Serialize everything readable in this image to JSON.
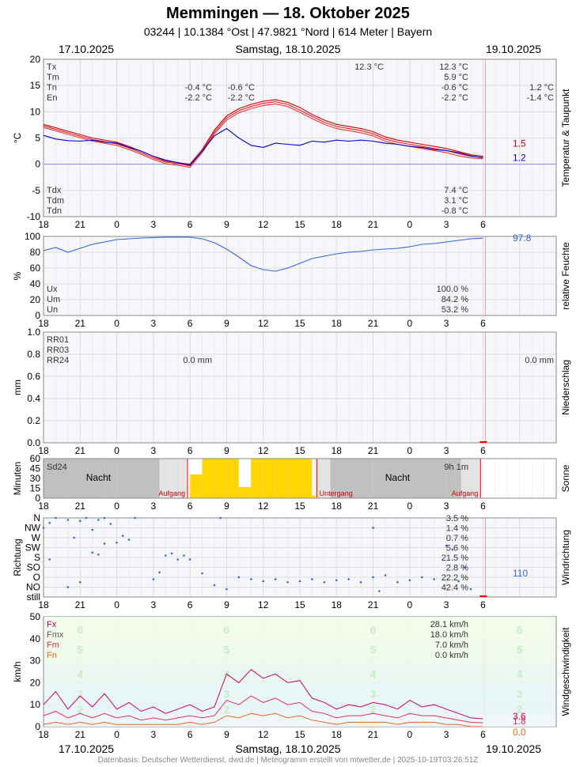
{
  "header": {
    "title": "Memmingen  —  18. Oktober 2025",
    "subtitle": "03244  |  10.1384 °Ost  |  47.9821 °Nord  |  614 Meter  |  Bayern"
  },
  "dates": {
    "left": "17.10.2025",
    "center": "Samstag, 18.10.2025",
    "right": "19.10.2025"
  },
  "footer": "Datenbasis: Deutscher Wetterdienst, dwd.de | Meteogramm erstellt von mtwetter.de | 2025-10-19T03:26:51Z",
  "x_ticks": [
    "18",
    "21",
    "0",
    "3",
    "6",
    "9",
    "12",
    "15",
    "18",
    "21",
    "0",
    "3",
    "6"
  ],
  "colors": {
    "tx": "#cc0000",
    "tm": "#dd2222",
    "tn": "#ee3333",
    "dew": "#0000cc",
    "humidity": "#3366dd",
    "sun": "#ffd700",
    "night": "#c0c0c0",
    "fx": "#cc0066",
    "fm": "#dd3355",
    "fn": "#ee6622",
    "dir": "#3366dd",
    "now": "#ff0000"
  },
  "chart_data": [
    {
      "type": "line",
      "name": "temperature",
      "side_label": "Temperatur & Taupunkt",
      "ylabel": "°C",
      "ylim": [
        -10,
        20
      ],
      "yticks": [
        "20",
        "15",
        "10",
        "5",
        "0",
        "-5",
        "-10"
      ],
      "x_range_hours": [
        -6,
        36
      ],
      "series": [
        {
          "name": "Tx",
          "x": [
            -6,
            -4,
            -2,
            0,
            1,
            2,
            3,
            4,
            5,
            6,
            7,
            8,
            9,
            10,
            11,
            12,
            13,
            14,
            15,
            16,
            17,
            18,
            19,
            20,
            21,
            22,
            23,
            24,
            25,
            26,
            27,
            28,
            29,
            30
          ],
          "values": [
            7.6,
            6.3,
            5.0,
            4.2,
            3.4,
            2.5,
            1.5,
            0.6,
            0.3,
            0.0,
            2.8,
            6.5,
            9.2,
            10.6,
            11.4,
            12.0,
            12.3,
            11.8,
            10.8,
            9.5,
            8.4,
            7.6,
            7.2,
            6.8,
            6.2,
            5.2,
            4.6,
            4.2,
            3.8,
            3.4,
            3.0,
            2.4,
            1.8,
            1.5
          ]
        },
        {
          "name": "Tm",
          "x": [
            -6,
            -4,
            -2,
            0,
            1,
            2,
            3,
            4,
            5,
            6,
            7,
            8,
            9,
            10,
            11,
            12,
            13,
            14,
            15,
            16,
            17,
            18,
            19,
            20,
            21,
            22,
            23,
            24,
            25,
            26,
            27,
            28,
            29,
            30
          ],
          "values": [
            7.3,
            6.0,
            4.7,
            3.9,
            3.1,
            2.2,
            1.2,
            0.4,
            0.1,
            -0.3,
            2.5,
            6.1,
            8.8,
            10.2,
            11.0,
            11.6,
            11.9,
            11.4,
            10.3,
            9.1,
            8.0,
            7.2,
            6.8,
            6.4,
            5.8,
            4.8,
            4.2,
            3.8,
            3.4,
            3.0,
            2.6,
            2.0,
            1.5,
            1.3
          ]
        },
        {
          "name": "Tn",
          "x": [
            -6,
            -4,
            -2,
            0,
            1,
            2,
            3,
            4,
            5,
            6,
            7,
            8,
            9,
            10,
            11,
            12,
            13,
            14,
            15,
            16,
            17,
            18,
            19,
            20,
            21,
            22,
            23,
            24,
            25,
            26,
            27,
            28,
            29,
            30
          ],
          "values": [
            7.0,
            5.7,
            4.4,
            3.6,
            2.8,
            1.9,
            0.9,
            0.1,
            -0.2,
            -0.6,
            2.2,
            5.8,
            8.4,
            9.8,
            10.6,
            11.2,
            11.5,
            11.0,
            9.9,
            8.7,
            7.6,
            6.8,
            6.4,
            6.0,
            5.4,
            4.4,
            3.8,
            3.4,
            3.0,
            2.6,
            2.2,
            1.6,
            1.2,
            1.0
          ]
        },
        {
          "name": "Td",
          "x": [
            -6,
            -5,
            -4,
            -3,
            -2,
            -1,
            0,
            1,
            2,
            3,
            4,
            5,
            6,
            7,
            8,
            9,
            10,
            11,
            12,
            13,
            14,
            15,
            16,
            17,
            18,
            19,
            20,
            21,
            22,
            23,
            24,
            25,
            26,
            27,
            28,
            29,
            30
          ],
          "values": [
            5.5,
            4.8,
            4.5,
            4.4,
            4.6,
            4.2,
            4.0,
            3.2,
            2.5,
            1.5,
            0.8,
            0.3,
            -0.2,
            2.5,
            5.4,
            6.8,
            5.0,
            3.6,
            3.2,
            4.0,
            3.8,
            3.6,
            4.4,
            4.2,
            4.6,
            4.4,
            4.6,
            4.4,
            4.0,
            3.8,
            3.4,
            3.2,
            2.8,
            2.6,
            2.2,
            1.6,
            1.2
          ]
        }
      ],
      "stats_left": [
        {
          "label": "Tx",
          "a": "",
          "b": ""
        },
        {
          "label": "Tm",
          "a": "",
          "b": ""
        },
        {
          "label": "Tn",
          "a": "-0.4 °C",
          "b": "-0.6 °C"
        },
        {
          "label": "En",
          "a": "-2.2 °C",
          "b": "-2.2 °C"
        }
      ],
      "stats_mid": [
        "12.3 °C",
        "",
        "",
        ""
      ],
      "stats_right": [
        "12.3 °C",
        "5.9 °C",
        "-0.6 °C",
        "-2.2 °C"
      ],
      "stats_far": [
        "",
        "",
        "1.2 °C",
        "-1.4 °C"
      ],
      "stats_dew_labels": [
        "Tdx",
        "Tdm",
        "Tdn"
      ],
      "stats_dew": [
        "7.4 °C",
        "3.1 °C",
        "-0.8 °C"
      ],
      "end_values": [
        "1.5",
        "1.2"
      ]
    },
    {
      "type": "line",
      "name": "humidity",
      "side_label": "relative Feuchte",
      "ylabel": "%",
      "ylim": [
        0,
        100
      ],
      "yticks": [
        "100",
        "80",
        "60",
        "40",
        "20",
        "0"
      ],
      "series": [
        {
          "name": "U",
          "x": [
            -6,
            -5,
            -4,
            -3,
            -2,
            -1,
            0,
            2,
            4,
            6,
            7,
            8,
            9,
            10,
            11,
            12,
            13,
            14,
            15,
            16,
            17,
            18,
            19,
            20,
            21,
            22,
            23,
            24,
            25,
            26,
            27,
            28,
            29,
            30
          ],
          "values": [
            82,
            86,
            80,
            85,
            90,
            93,
            96,
            98,
            99,
            99,
            97,
            92,
            84,
            74,
            63,
            58,
            56,
            60,
            66,
            72,
            75,
            78,
            80,
            81,
            83,
            84,
            85,
            87,
            90,
            91,
            93,
            95,
            97,
            97.8
          ]
        }
      ],
      "stats_labels": [
        "Ux",
        "Um",
        "Un"
      ],
      "stats": [
        "100.0 %",
        "84.2 %",
        "53.2 %"
      ],
      "end_value": "97.8"
    },
    {
      "type": "bar",
      "name": "precipitation",
      "side_label": "Niederschlag",
      "ylabel": "mm",
      "ylim": [
        0,
        1.0
      ],
      "yticks": [
        "1.0",
        "0.8",
        "0.6",
        "0.4",
        "0.2",
        "0.0"
      ],
      "stats_labels": [
        "RR01",
        "RR03",
        "RR24"
      ],
      "stats_mid": "0.0 mm",
      "stats_right": "0.0 mm"
    },
    {
      "type": "bar",
      "name": "sunshine",
      "side_label": "Sonne",
      "ylabel": "Minuten",
      "ylim": [
        0,
        60
      ],
      "yticks": [
        "60",
        "45",
        "30",
        "15",
        "0"
      ],
      "x": [
        6,
        7,
        8,
        9,
        10,
        11,
        12,
        13,
        14,
        15
      ],
      "values": [
        36,
        60,
        60,
        60,
        17,
        60,
        60,
        60,
        60,
        60
      ],
      "stats_label": "Sd24",
      "stats_value": "9h 1m",
      "night_label": "Nacht",
      "sunrise_label": "Aufgang",
      "sunset_label": "Untergang"
    },
    {
      "type": "scatter",
      "name": "wind_direction",
      "side_label": "Windrichtung",
      "ylabel": "Richtung",
      "categories": [
        "N",
        "NW",
        "W",
        "SW",
        "S",
        "SO",
        "O",
        "NO",
        "still"
      ],
      "stats": [
        "3.5 %",
        "1.4 %",
        "0.7 %",
        "5.6 %",
        "21.5 %",
        "2.8 %",
        "22.2 %",
        "42.4 %",
        ""
      ],
      "end_value": "110"
    },
    {
      "type": "line",
      "name": "wind_speed",
      "side_label": "Windgeschwindigkeit",
      "ylabel": "km/h",
      "ylim": [
        0,
        50
      ],
      "yticks": [
        "50",
        "40",
        "30",
        "20",
        "10",
        "0"
      ],
      "beaufort": [
        "6",
        "5",
        "4",
        "3",
        "2"
      ],
      "series": [
        {
          "name": "Fx",
          "x": [
            -6,
            -5,
            -4,
            -3,
            -2,
            -1,
            0,
            1,
            2,
            3,
            4,
            5,
            6,
            7,
            8,
            9,
            10,
            11,
            12,
            13,
            14,
            15,
            16,
            17,
            18,
            19,
            20,
            21,
            22,
            23,
            24,
            25,
            26,
            27,
            28,
            29,
            30
          ],
          "values": [
            10,
            16,
            8,
            14,
            9,
            15,
            8,
            11,
            7,
            9,
            6,
            8,
            10,
            7,
            9,
            24,
            20,
            26,
            22,
            24,
            20,
            21,
            13,
            11,
            8,
            10,
            9,
            11,
            10,
            8,
            12,
            9,
            10,
            8,
            6,
            4,
            3.6
          ]
        },
        {
          "name": "Fm",
          "x": [
            -6,
            -5,
            -4,
            -3,
            -2,
            -1,
            0,
            1,
            2,
            3,
            4,
            5,
            6,
            7,
            8,
            9,
            10,
            11,
            12,
            13,
            14,
            15,
            16,
            17,
            18,
            19,
            20,
            21,
            22,
            23,
            24,
            25,
            26,
            27,
            28,
            29,
            30
          ],
          "values": [
            5,
            7,
            4,
            6,
            4,
            6,
            4,
            5,
            3,
            4,
            3,
            4,
            5,
            4,
            5,
            12,
            10,
            14,
            11,
            13,
            10,
            11,
            7,
            6,
            4,
            5,
            5,
            6,
            5,
            4,
            6,
            5,
            5,
            4,
            3,
            2,
            1.8
          ]
        },
        {
          "name": "Fn",
          "x": [
            -6,
            -5,
            -4,
            -3,
            -2,
            -1,
            0,
            1,
            2,
            3,
            4,
            5,
            6,
            7,
            8,
            9,
            10,
            11,
            12,
            13,
            14,
            15,
            16,
            17,
            18,
            19,
            20,
            21,
            22,
            23,
            24,
            25,
            26,
            27,
            28,
            29,
            30
          ],
          "values": [
            1,
            2,
            1,
            2,
            1,
            2,
            1,
            1,
            1,
            1,
            1,
            1,
            2,
            1,
            2,
            5,
            4,
            6,
            5,
            6,
            4,
            5,
            3,
            2,
            1,
            2,
            2,
            2,
            2,
            1,
            2,
            2,
            2,
            1,
            1,
            0,
            0.0
          ]
        }
      ],
      "stats_labels": [
        "Fx",
        "Fmx",
        "Fm",
        "Fn"
      ],
      "stats": [
        "28.1 km/h",
        "18.0 km/h",
        "7.0 km/h",
        "0.0 km/h"
      ],
      "end_values": [
        "3.6",
        "1.8",
        "0.0"
      ]
    }
  ]
}
